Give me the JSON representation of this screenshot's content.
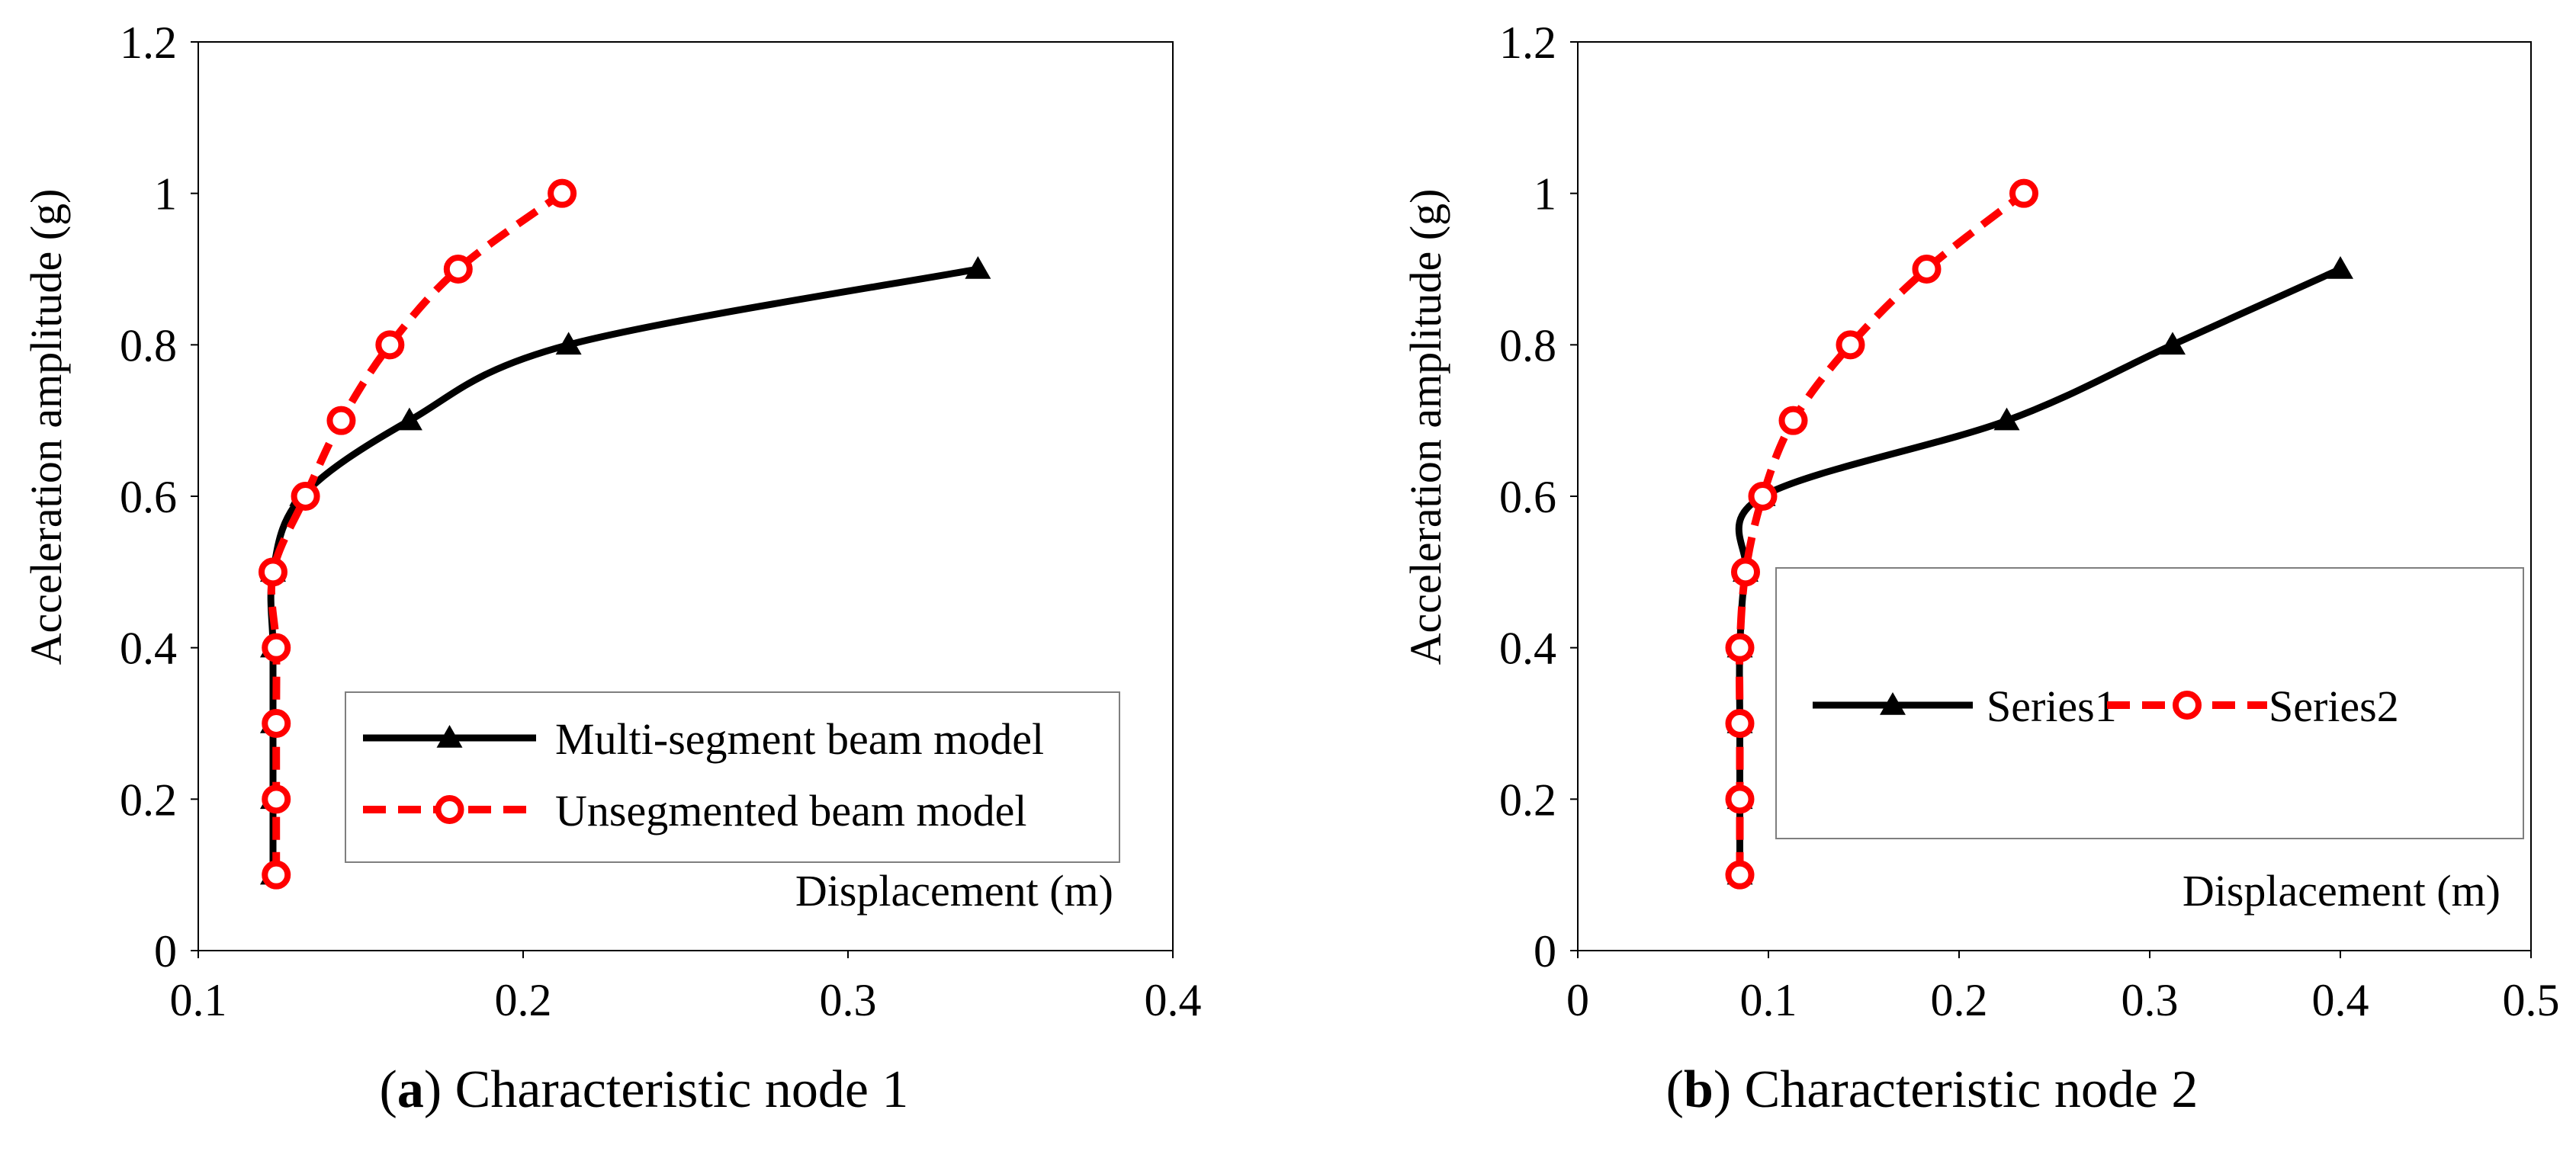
{
  "colors": {
    "series_black": "#000000",
    "series_red": "#ff0000",
    "frame": "#000000",
    "legend_border": "#7f7f7f"
  },
  "chart_data": [
    {
      "type": "line",
      "id": "a",
      "caption_label": "a",
      "caption_text": "Characteristic node 1",
      "xlabel": "Displacement (m)",
      "ylabel": "Acceleration amplitude (g)",
      "xlim": [
        0.1,
        0.4
      ],
      "ylim": [
        0,
        1.2
      ],
      "xticks": [
        0.1,
        0.2,
        0.3,
        0.4
      ],
      "xtick_labels": [
        "0.1",
        "0.2",
        "0.3",
        "0.4"
      ],
      "yticks": [
        0,
        0.2,
        0.4,
        0.6,
        0.8,
        1,
        1.2
      ],
      "ytick_labels": [
        "0",
        "0.2",
        "0.4",
        "0.6",
        "0.8",
        "1",
        "1.2"
      ],
      "grid": false,
      "legend_position": "bottom-right",
      "series": [
        {
          "name": "Multi-segment beam model",
          "color": "#000000",
          "dash": "solid",
          "marker": "triangle",
          "x": [
            0.123,
            0.123,
            0.123,
            0.123,
            0.123,
            0.132,
            0.165,
            0.214,
            0.34
          ],
          "y": [
            0.1,
            0.2,
            0.3,
            0.4,
            0.5,
            0.6,
            0.7,
            0.8,
            0.9
          ]
        },
        {
          "name": "Unsegmented beam model",
          "color": "#ff0000",
          "dash": "dashed",
          "marker": "circle",
          "x": [
            0.124,
            0.124,
            0.124,
            0.124,
            0.123,
            0.133,
            0.144,
            0.159,
            0.18,
            0.212
          ],
          "y": [
            0.1,
            0.2,
            0.3,
            0.4,
            0.5,
            0.6,
            0.7,
            0.8,
            0.9,
            1.0
          ]
        }
      ]
    },
    {
      "type": "line",
      "id": "b",
      "caption_label": "b",
      "caption_text": "Characteristic node 2",
      "xlabel": "Displacement (m)",
      "ylabel": "Acceleration amplitude (g)",
      "xlim": [
        0,
        0.5
      ],
      "ylim": [
        0,
        1.2
      ],
      "xticks": [
        0,
        0.1,
        0.2,
        0.3,
        0.4,
        0.5
      ],
      "xtick_labels": [
        "0",
        "0.1",
        "0.2",
        "0.3",
        "0.4",
        "0.5"
      ],
      "yticks": [
        0,
        0.2,
        0.4,
        0.6,
        0.8,
        1,
        1.2
      ],
      "ytick_labels": [
        "0",
        "0.2",
        "0.4",
        "0.6",
        "0.8",
        "1",
        "1.2"
      ],
      "grid": false,
      "legend_position": "right",
      "series": [
        {
          "name": "Series1",
          "color": "#000000",
          "dash": "solid",
          "marker": "triangle",
          "x": [
            0.085,
            0.085,
            0.085,
            0.085,
            0.088,
            0.097,
            0.225,
            0.312,
            0.4
          ],
          "y": [
            0.1,
            0.2,
            0.3,
            0.4,
            0.5,
            0.6,
            0.7,
            0.8,
            0.9
          ]
        },
        {
          "name": "Series2",
          "color": "#ff0000",
          "dash": "dashed",
          "marker": "circle",
          "x": [
            0.085,
            0.085,
            0.085,
            0.085,
            0.088,
            0.097,
            0.113,
            0.143,
            0.183,
            0.234
          ],
          "y": [
            0.1,
            0.2,
            0.3,
            0.4,
            0.5,
            0.6,
            0.7,
            0.8,
            0.9,
            1.0
          ]
        }
      ]
    }
  ]
}
